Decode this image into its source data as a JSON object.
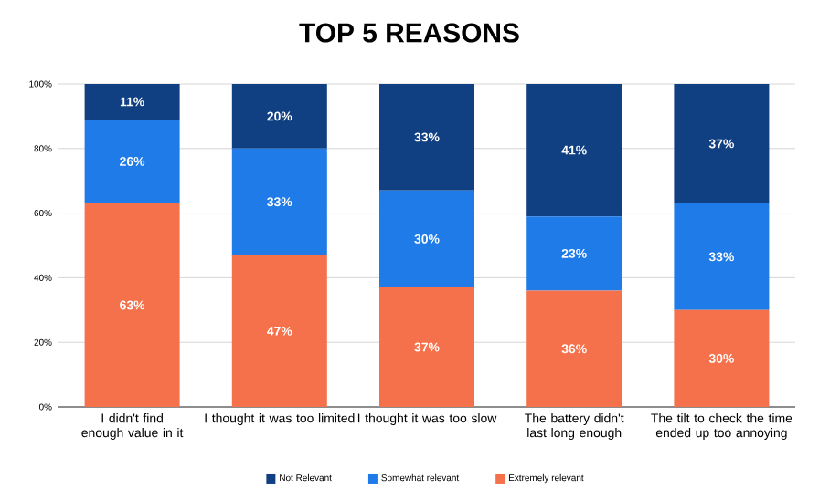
{
  "chart_data": {
    "type": "bar",
    "title": "TOP 5 REASONS",
    "stacked": true,
    "grid": "y",
    "legend": "bottom",
    "data_labels": true,
    "categories": [
      "I didn't find enough value in it",
      "I thought it was too limited",
      "I thought it was too slow",
      "The battery didn't last long enough",
      "The tilt to check the time ended up too annoying"
    ],
    "ylim": [
      0,
      100
    ],
    "yticks": [
      {
        "value": 0,
        "label": "0%"
      },
      {
        "value": 20,
        "label": "20%"
      },
      {
        "value": 40,
        "label": "40%"
      },
      {
        "value": 60,
        "label": "60%"
      },
      {
        "value": 80,
        "label": "80%"
      },
      {
        "value": 100,
        "label": "100%"
      }
    ],
    "series": [
      {
        "name": "Extremely relevant",
        "color": "#f4714b",
        "values": [
          63,
          47,
          37,
          36,
          30
        ],
        "value_labels": [
          "63%",
          "47%",
          "37%",
          "36%",
          "30%"
        ]
      },
      {
        "name": "Somewhat relevant",
        "color": "#1f7be8",
        "values": [
          26,
          33,
          30,
          23,
          33
        ],
        "value_labels": [
          "26%",
          "33%",
          "30%",
          "23%",
          "33%"
        ]
      },
      {
        "name": "Not Relevant",
        "color": "#103f82",
        "values": [
          11,
          20,
          33,
          41,
          37
        ],
        "value_labels": [
          "11%",
          "20%",
          "33%",
          "41%",
          "37%"
        ]
      }
    ]
  }
}
